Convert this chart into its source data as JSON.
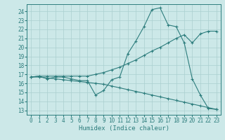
{
  "xlabel": "Humidex (Indice chaleur)",
  "bg_color": "#cce8e8",
  "grid_color": "#aacfcf",
  "line_color": "#2d7d7d",
  "xlim": [
    -0.5,
    23.5
  ],
  "ylim": [
    12.5,
    24.8
  ],
  "yticks": [
    13,
    14,
    15,
    16,
    17,
    18,
    19,
    20,
    21,
    22,
    23,
    24
  ],
  "xticks": [
    0,
    1,
    2,
    3,
    4,
    5,
    6,
    7,
    8,
    9,
    10,
    11,
    12,
    13,
    14,
    15,
    16,
    17,
    18,
    19,
    20,
    21,
    22,
    23
  ],
  "series1_x": [
    0,
    1,
    2,
    3,
    4,
    5,
    6,
    7,
    8,
    9,
    10,
    11,
    12,
    13,
    14,
    15,
    16,
    17,
    18,
    19,
    20,
    21,
    22,
    23
  ],
  "series1_y": [
    16.7,
    16.8,
    16.5,
    16.7,
    16.7,
    16.5,
    16.3,
    16.3,
    14.7,
    15.2,
    16.4,
    16.7,
    19.3,
    20.7,
    22.3,
    24.2,
    24.4,
    22.5,
    22.3,
    20.5,
    16.5,
    14.7,
    13.2,
    13.1
  ],
  "series2_x": [
    0,
    1,
    2,
    3,
    4,
    5,
    6,
    7,
    8,
    9,
    10,
    11,
    12,
    13,
    14,
    15,
    16,
    17,
    18,
    19,
    20,
    21,
    22,
    23
  ],
  "series2_y": [
    16.7,
    16.8,
    16.8,
    16.8,
    16.8,
    16.8,
    16.8,
    16.8,
    17.0,
    17.2,
    17.5,
    17.8,
    18.2,
    18.6,
    19.1,
    19.6,
    20.0,
    20.5,
    21.0,
    21.4,
    20.5,
    21.5,
    21.8,
    21.8
  ],
  "series3_x": [
    0,
    1,
    2,
    3,
    4,
    5,
    6,
    7,
    8,
    9,
    10,
    11,
    12,
    13,
    14,
    15,
    16,
    17,
    18,
    19,
    20,
    21,
    22,
    23
  ],
  "series3_y": [
    16.7,
    16.7,
    16.6,
    16.5,
    16.4,
    16.3,
    16.2,
    16.1,
    16.0,
    15.9,
    15.7,
    15.5,
    15.3,
    15.1,
    14.9,
    14.7,
    14.5,
    14.3,
    14.1,
    13.9,
    13.7,
    13.5,
    13.3,
    13.1
  ]
}
